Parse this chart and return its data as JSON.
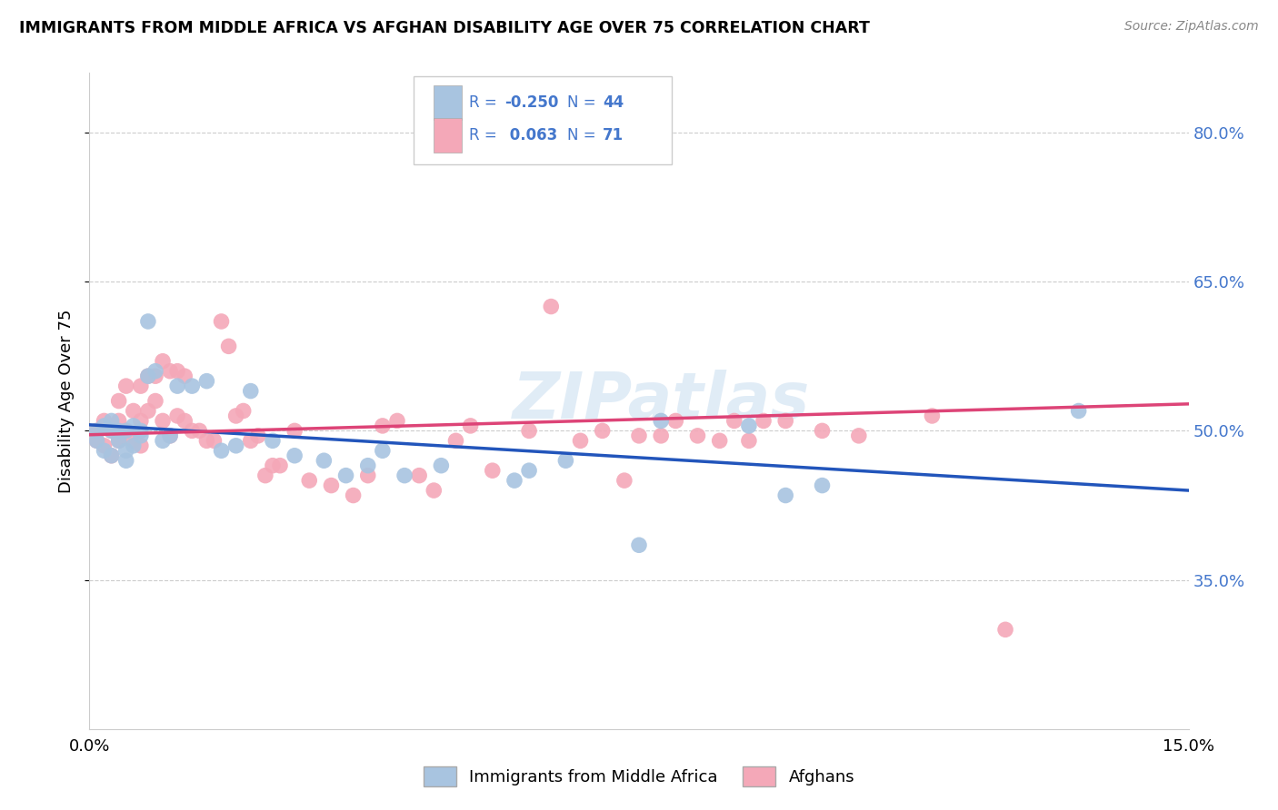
{
  "title": "IMMIGRANTS FROM MIDDLE AFRICA VS AFGHAN DISABILITY AGE OVER 75 CORRELATION CHART",
  "source": "Source: ZipAtlas.com",
  "ylabel": "Disability Age Over 75",
  "xmin": 0.0,
  "xmax": 0.15,
  "ymin": 0.2,
  "ymax": 0.86,
  "yticks": [
    0.35,
    0.5,
    0.65,
    0.8
  ],
  "ytick_labels": [
    "35.0%",
    "50.0%",
    "65.0%",
    "80.0%"
  ],
  "xticks": [
    0.0,
    0.025,
    0.05,
    0.075,
    0.1,
    0.125,
    0.15
  ],
  "xtick_labels": [
    "0.0%",
    "",
    "",
    "",
    "",
    "",
    "15.0%"
  ],
  "blue_R": -0.25,
  "blue_N": 44,
  "pink_R": 0.063,
  "pink_N": 71,
  "blue_color": "#a8c4e0",
  "pink_color": "#f4a8b8",
  "blue_line_color": "#2255bb",
  "pink_line_color": "#dd4477",
  "legend_text_color": "#4477cc",
  "watermark": "ZIPatlas",
  "blue_x": [
    0.001,
    0.001,
    0.002,
    0.002,
    0.003,
    0.003,
    0.003,
    0.004,
    0.004,
    0.005,
    0.005,
    0.005,
    0.006,
    0.006,
    0.007,
    0.007,
    0.008,
    0.008,
    0.009,
    0.01,
    0.011,
    0.012,
    0.014,
    0.016,
    0.018,
    0.02,
    0.022,
    0.025,
    0.028,
    0.032,
    0.035,
    0.038,
    0.04,
    0.043,
    0.048,
    0.058,
    0.06,
    0.065,
    0.075,
    0.078,
    0.09,
    0.095,
    0.1,
    0.135
  ],
  "blue_y": [
    0.5,
    0.49,
    0.505,
    0.48,
    0.5,
    0.475,
    0.51,
    0.49,
    0.5,
    0.5,
    0.47,
    0.48,
    0.505,
    0.485,
    0.5,
    0.495,
    0.61,
    0.555,
    0.56,
    0.49,
    0.495,
    0.545,
    0.545,
    0.55,
    0.48,
    0.485,
    0.54,
    0.49,
    0.475,
    0.47,
    0.455,
    0.465,
    0.48,
    0.455,
    0.465,
    0.45,
    0.46,
    0.47,
    0.385,
    0.51,
    0.505,
    0.435,
    0.445,
    0.52
  ],
  "pink_x": [
    0.001,
    0.001,
    0.002,
    0.002,
    0.003,
    0.003,
    0.004,
    0.004,
    0.004,
    0.005,
    0.005,
    0.006,
    0.006,
    0.007,
    0.007,
    0.007,
    0.008,
    0.008,
    0.009,
    0.009,
    0.01,
    0.01,
    0.011,
    0.011,
    0.012,
    0.012,
    0.013,
    0.013,
    0.014,
    0.015,
    0.016,
    0.017,
    0.018,
    0.019,
    0.02,
    0.021,
    0.022,
    0.023,
    0.024,
    0.025,
    0.026,
    0.028,
    0.03,
    0.033,
    0.036,
    0.038,
    0.04,
    0.042,
    0.045,
    0.047,
    0.05,
    0.052,
    0.055,
    0.06,
    0.063,
    0.067,
    0.07,
    0.073,
    0.075,
    0.078,
    0.08,
    0.083,
    0.086,
    0.088,
    0.09,
    0.092,
    0.095,
    0.1,
    0.105,
    0.115,
    0.125
  ],
  "pink_y": [
    0.5,
    0.49,
    0.51,
    0.485,
    0.5,
    0.475,
    0.51,
    0.53,
    0.49,
    0.5,
    0.545,
    0.52,
    0.49,
    0.545,
    0.51,
    0.485,
    0.555,
    0.52,
    0.555,
    0.53,
    0.57,
    0.51,
    0.56,
    0.495,
    0.515,
    0.56,
    0.51,
    0.555,
    0.5,
    0.5,
    0.49,
    0.49,
    0.61,
    0.585,
    0.515,
    0.52,
    0.49,
    0.495,
    0.455,
    0.465,
    0.465,
    0.5,
    0.45,
    0.445,
    0.435,
    0.455,
    0.505,
    0.51,
    0.455,
    0.44,
    0.49,
    0.505,
    0.46,
    0.5,
    0.625,
    0.49,
    0.5,
    0.45,
    0.495,
    0.495,
    0.51,
    0.495,
    0.49,
    0.51,
    0.49,
    0.51,
    0.51,
    0.5,
    0.495,
    0.515,
    0.3
  ],
  "blue_line_x0": 0.0,
  "blue_line_y0": 0.506,
  "blue_line_x1": 0.15,
  "blue_line_y1": 0.44,
  "pink_line_x0": 0.0,
  "pink_line_y0": 0.496,
  "pink_line_x1": 0.15,
  "pink_line_y1": 0.527
}
